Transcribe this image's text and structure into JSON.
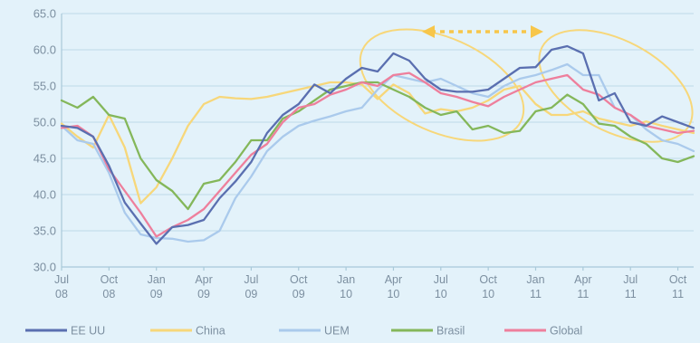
{
  "chart_data": {
    "type": "line",
    "title": "",
    "xlabel": "",
    "ylabel": "",
    "ylim": [
      30,
      65
    ],
    "yticks": [
      "30.0",
      "35.0",
      "40.0",
      "45.0",
      "50.0",
      "55.0",
      "60.0",
      "65.0"
    ],
    "grid": "horizontal",
    "legend_position": "bottom",
    "x_tick_labels": [
      [
        "Jul",
        "08"
      ],
      [
        "Oct",
        "08"
      ],
      [
        "Jan",
        "09"
      ],
      [
        "Apr",
        "09"
      ],
      [
        "Jul",
        "09"
      ],
      [
        "Oct",
        "09"
      ],
      [
        "Jan",
        "10"
      ],
      [
        "Apr",
        "10"
      ],
      [
        "Jul",
        "10"
      ],
      [
        "Oct",
        "10"
      ],
      [
        "Jan",
        "11"
      ],
      [
        "Apr",
        "11"
      ],
      [
        "Jul",
        "11"
      ],
      [
        "Oct",
        "11"
      ]
    ],
    "x": [
      "2008-07",
      "2008-08",
      "2008-09",
      "2008-10",
      "2008-11",
      "2008-12",
      "2009-01",
      "2009-02",
      "2009-03",
      "2009-04",
      "2009-05",
      "2009-06",
      "2009-07",
      "2009-08",
      "2009-09",
      "2009-10",
      "2009-11",
      "2009-12",
      "2010-01",
      "2010-02",
      "2010-03",
      "2010-04",
      "2010-05",
      "2010-06",
      "2010-07",
      "2010-08",
      "2010-09",
      "2010-10",
      "2010-11",
      "2010-12",
      "2011-01",
      "2011-02",
      "2011-03",
      "2011-04",
      "2011-05",
      "2011-06",
      "2011-07",
      "2011-08",
      "2011-09",
      "2011-10",
      "2011-11"
    ],
    "series": [
      {
        "name": "EE UU",
        "color": "#5a6fb0",
        "values": [
          49.5,
          49.2,
          48.0,
          44.0,
          38.9,
          36.0,
          33.2,
          35.5,
          35.8,
          36.5,
          39.5,
          41.8,
          44.5,
          48.5,
          51.0,
          52.5,
          55.2,
          54.0,
          56.0,
          57.5,
          57.0,
          59.5,
          58.5,
          56.0,
          54.5,
          54.2,
          54.2,
          54.5,
          56.0,
          57.5,
          57.6,
          60.0,
          60.5,
          59.5,
          53.0,
          54.0,
          50.0,
          49.5,
          50.8,
          50.0,
          49.2
        ]
      },
      {
        "name": "China",
        "color": "#f7d77a",
        "values": [
          49.8,
          48.0,
          46.5,
          51.0,
          46.5,
          38.8,
          41.0,
          45.0,
          49.5,
          52.5,
          53.5,
          53.3,
          53.2,
          53.5,
          54.0,
          54.5,
          55.0,
          55.5,
          55.5,
          55.2,
          53.2,
          55.2,
          54.0,
          51.2,
          51.8,
          51.5,
          52.0,
          53.0,
          54.5,
          55.0,
          52.5,
          51.0,
          51.0,
          51.5,
          50.5,
          50.0,
          49.5,
          50.1,
          49.5,
          49.0,
          48.5
        ]
      },
      {
        "name": "UEM",
        "color": "#aacaec",
        "values": [
          49.5,
          47.5,
          47.0,
          43.0,
          37.5,
          34.5,
          34.0,
          33.9,
          33.5,
          33.7,
          35.0,
          39.5,
          42.5,
          46.0,
          48.0,
          49.5,
          50.2,
          50.8,
          51.5,
          52.0,
          54.5,
          56.5,
          56.0,
          55.5,
          56.0,
          55.0,
          54.0,
          53.5,
          55.0,
          56.0,
          56.5,
          57.2,
          58.0,
          56.5,
          56.5,
          52.0,
          51.0,
          49.0,
          47.5,
          47.0,
          46.0
        ]
      },
      {
        "name": "Brasil",
        "color": "#84b75a",
        "values": [
          53.0,
          52.0,
          53.5,
          51.0,
          50.5,
          45.0,
          42.0,
          40.5,
          38.0,
          41.5,
          42.0,
          44.5,
          47.5,
          47.5,
          50.5,
          51.5,
          53.0,
          54.5,
          55.0,
          55.5,
          55.5,
          54.5,
          53.5,
          52.0,
          51.0,
          51.5,
          49.0,
          49.5,
          48.5,
          48.8,
          51.5,
          52.0,
          53.8,
          52.5,
          49.8,
          49.5,
          48.0,
          47.0,
          45.0,
          44.5,
          45.3
        ]
      },
      {
        "name": "Global",
        "color": "#ee7f9c",
        "values": [
          49.2,
          49.5,
          48.0,
          43.5,
          40.5,
          37.5,
          34.2,
          35.5,
          36.5,
          38.0,
          40.5,
          43.0,
          45.5,
          47.0,
          50.0,
          52.0,
          52.5,
          53.8,
          54.5,
          55.5,
          55.0,
          56.5,
          56.8,
          55.5,
          54.0,
          53.5,
          52.8,
          52.2,
          53.5,
          54.5,
          55.5,
          56.0,
          56.5,
          54.5,
          53.8,
          52.0,
          51.0,
          49.5,
          49.0,
          48.5,
          48.8
        ]
      }
    ],
    "annotations": {
      "ellipse_color": "#f7d77a",
      "arrow_color": "#f7c64a"
    }
  }
}
